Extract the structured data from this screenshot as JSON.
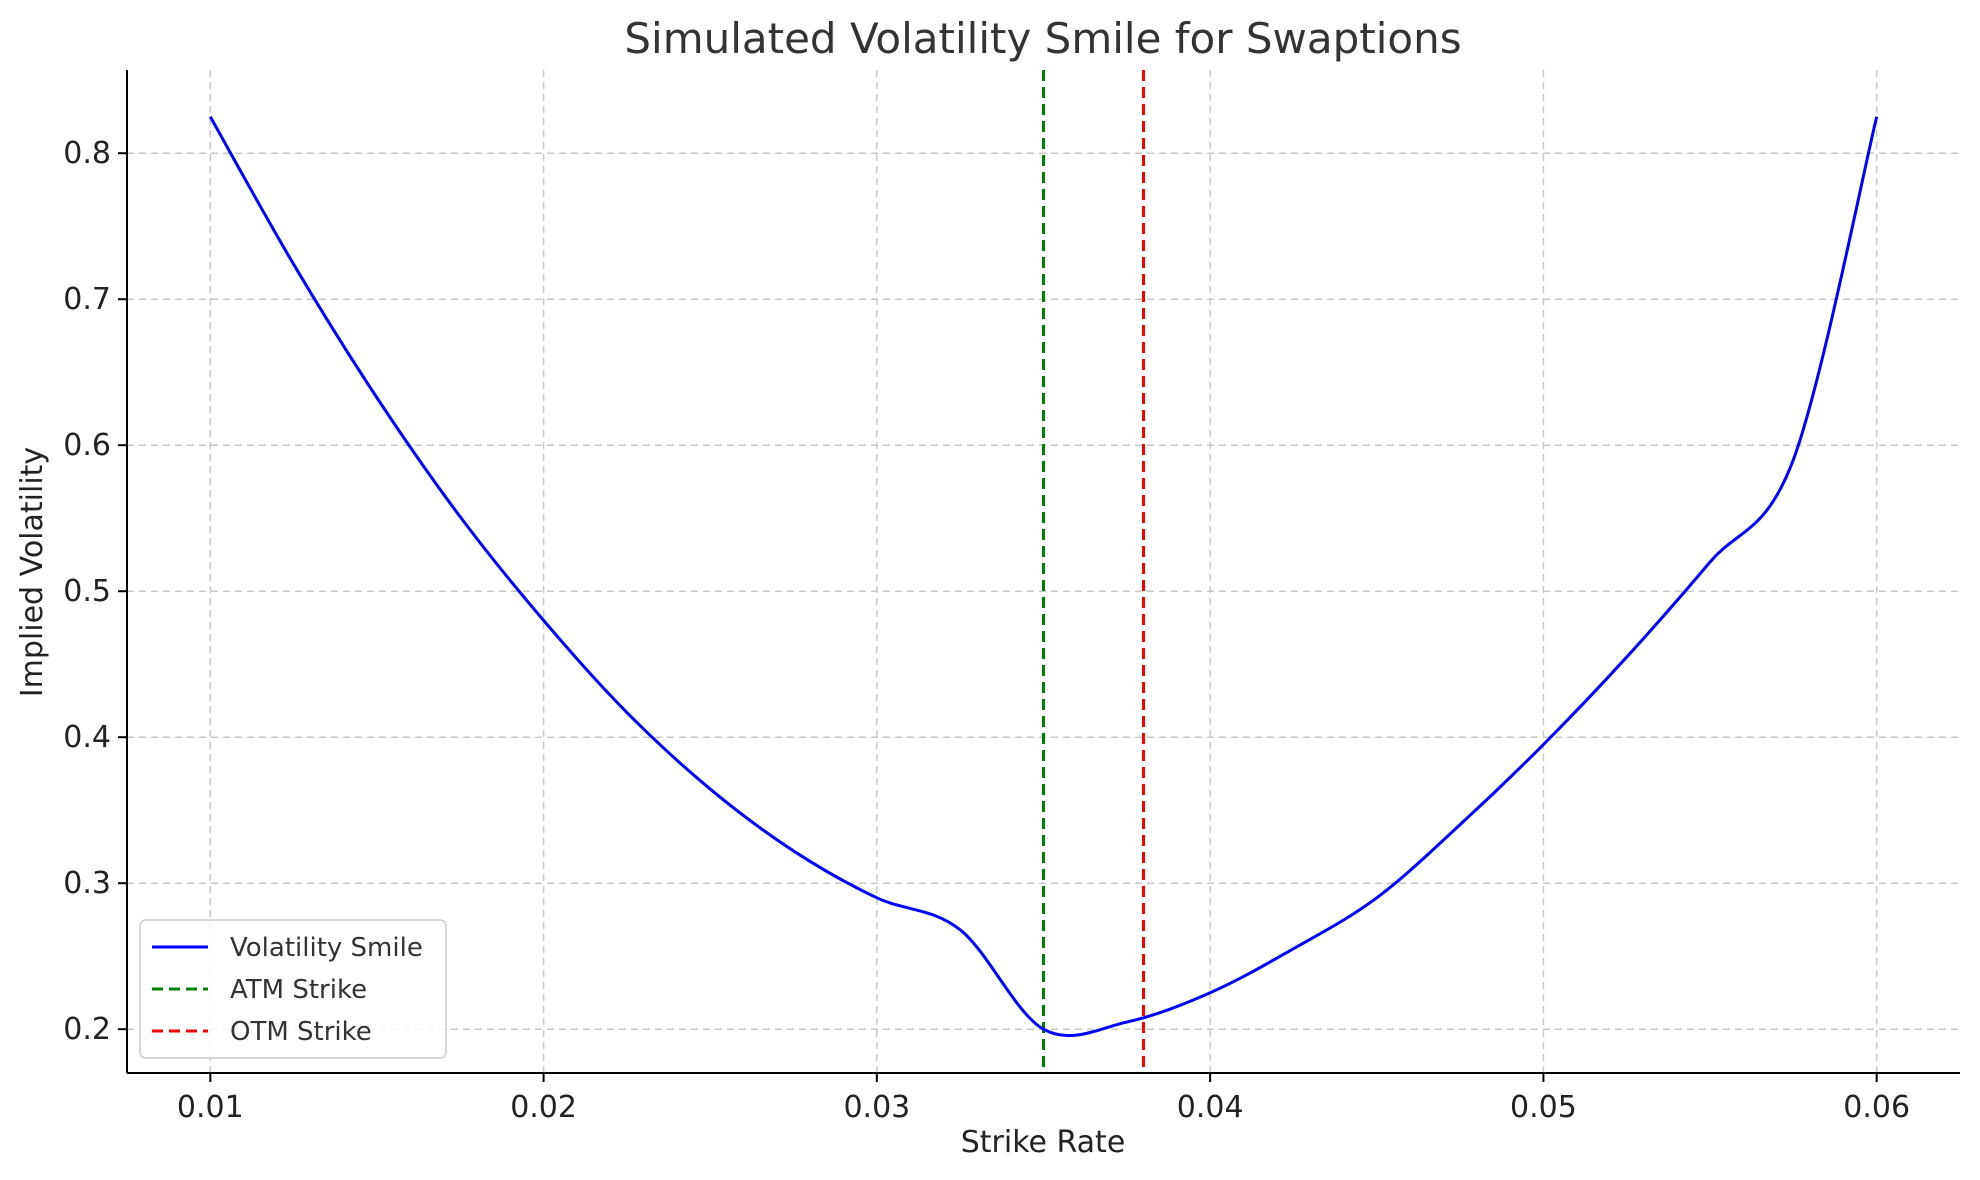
{
  "chart_data": {
    "type": "line",
    "title": "Simulated Volatility Smile for Swaptions",
    "xlabel": "Strike Rate",
    "ylabel": "Implied Volatility",
    "xlim": [
      0.0075,
      0.0625
    ],
    "ylim": [
      0.17,
      0.857
    ],
    "xticks": [
      0.01,
      0.02,
      0.03,
      0.04,
      0.05,
      0.06
    ],
    "xtick_labels": [
      "0.01",
      "0.02",
      "0.03",
      "0.04",
      "0.05",
      "0.06"
    ],
    "yticks": [
      0.2,
      0.3,
      0.4,
      0.5,
      0.6,
      0.7,
      0.8
    ],
    "ytick_labels": [
      "0.2",
      "0.3",
      "0.4",
      "0.5",
      "0.6",
      "0.7",
      "0.8"
    ],
    "grid": true,
    "legend_position": "lower-left",
    "series": [
      {
        "name": "Volatility Smile",
        "color": "#0000ff",
        "style": "solid",
        "x": [
          0.01,
          0.0125,
          0.015,
          0.0175,
          0.02,
          0.0225,
          0.025,
          0.0275,
          0.03,
          0.0325,
          0.035,
          0.0375,
          0.04,
          0.0425,
          0.045,
          0.0475,
          0.05,
          0.0525,
          0.055,
          0.0575,
          0.06
        ],
        "y": [
          0.825,
          0.7239,
          0.6325,
          0.5509,
          0.48,
          0.4169,
          0.3645,
          0.3221,
          0.29,
          0.2681,
          0.2,
          0.2049,
          0.225,
          0.2551,
          0.29,
          0.3401,
          0.395,
          0.4549,
          0.52,
          0.5901,
          0.825
        ]
      },
      {
        "name": "ATM Strike",
        "color": "#008000",
        "style": "dashed",
        "x_value": 0.035
      },
      {
        "name": "OTM Strike",
        "color": "#ff0000",
        "style": "dashed",
        "x_value": 0.038
      }
    ]
  }
}
